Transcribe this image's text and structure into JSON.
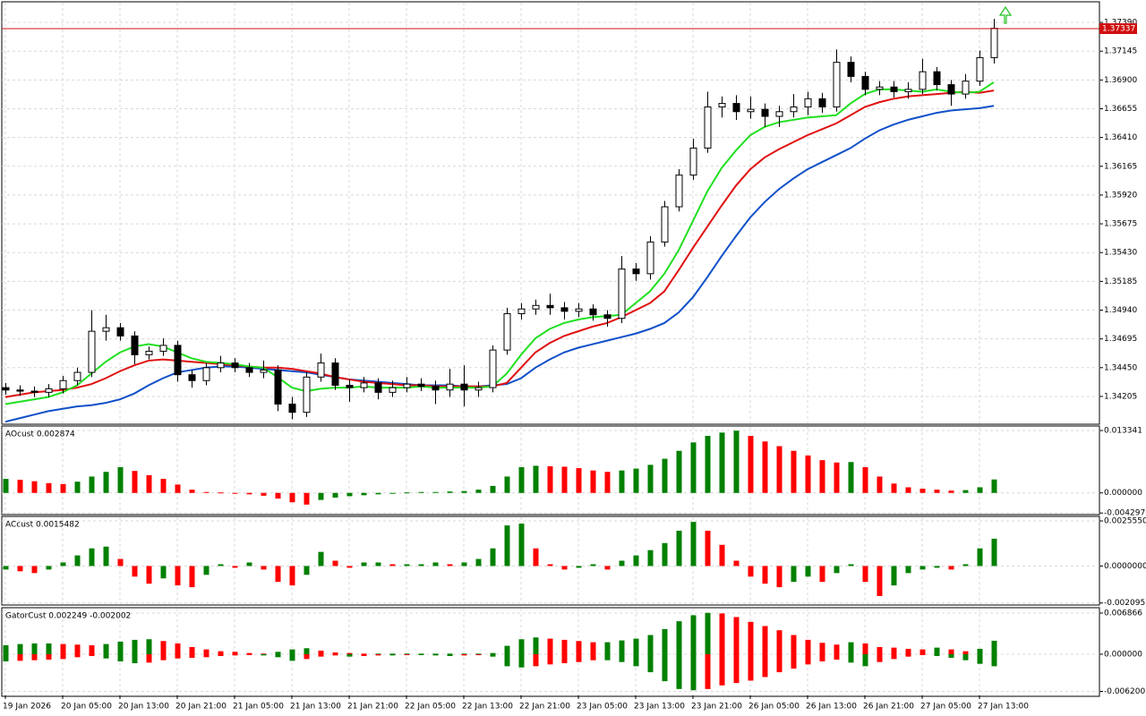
{
  "chart_data": [
    {
      "type": "candlestick",
      "categories": [
        "19 Jan 2026",
        null,
        null,
        null,
        "20 Jan 05:00",
        null,
        null,
        null,
        "20 Jan 13:00",
        null,
        null,
        null,
        "20 Jan 21:00",
        null,
        null,
        null,
        "21 Jan 05:00",
        null,
        null,
        null,
        "21 Jan 13:00",
        null,
        null,
        null,
        "21 Jan 21:00",
        null,
        null,
        null,
        "22 Jan 05:00",
        null,
        null,
        null,
        "22 Jan 13:00",
        null,
        null,
        null,
        "22 Jan 21:00",
        null,
        null,
        null,
        "23 Jan 05:00",
        null,
        null,
        null,
        "23 Jan 13:00",
        null,
        null,
        null,
        "23 Jan 21:00",
        null,
        null,
        null,
        "26 Jan 05:00",
        null,
        null,
        null,
        "26 Jan 13:00",
        null,
        null,
        null,
        "26 Jan 21:00",
        null,
        null,
        null,
        "27 Jan 05:00",
        null,
        null,
        null,
        "27 Jan 13:00",
        null
      ],
      "open": [
        1.3428,
        1.3426,
        1.3425,
        1.3424,
        1.3427,
        1.3434,
        1.3441,
        1.3476,
        1.3479,
        1.3472,
        1.3456,
        1.3459,
        1.3464,
        1.3439,
        1.3434,
        1.3445,
        1.3449,
        1.3445,
        1.3441,
        1.3443,
        1.3414,
        1.3407,
        1.3437,
        1.3449,
        1.343,
        1.3428,
        1.3432,
        1.3424,
        1.3428,
        1.3431,
        1.3429,
        1.3426,
        1.3431,
        1.3426,
        1.3428,
        1.346,
        1.3491,
        1.3495,
        1.3498,
        1.3496,
        1.3493,
        1.3495,
        1.349,
        1.3487,
        1.3529,
        1.3525,
        1.3552,
        1.3582,
        1.3609,
        1.3632,
        1.3667,
        1.367,
        1.3663,
        1.3665,
        1.3659,
        1.3663,
        1.3667,
        1.3674,
        1.3667,
        1.3705,
        1.3693,
        1.3682,
        1.3684,
        1.368,
        1.3682,
        1.3697,
        1.3686,
        1.3678,
        1.3689,
        1.3709
      ],
      "high": [
        1.3432,
        1.343,
        1.3429,
        1.3431,
        1.3438,
        1.3445,
        1.3494,
        1.349,
        1.3483,
        1.3476,
        1.3463,
        1.347,
        1.3468,
        1.3443,
        1.3449,
        1.3455,
        1.3453,
        1.3449,
        1.3451,
        1.3447,
        1.342,
        1.3441,
        1.3457,
        1.3453,
        1.3435,
        1.3437,
        1.3436,
        1.3434,
        1.3437,
        1.3436,
        1.3434,
        1.3444,
        1.3447,
        1.3433,
        1.3464,
        1.3496,
        1.35,
        1.3503,
        1.3508,
        1.3501,
        1.35,
        1.3499,
        1.3494,
        1.354,
        1.3534,
        1.3557,
        1.3587,
        1.3614,
        1.364,
        1.368,
        1.3676,
        1.3677,
        1.3676,
        1.367,
        1.3668,
        1.3678,
        1.368,
        1.3679,
        1.3716,
        1.371,
        1.3697,
        1.3689,
        1.3689,
        1.3688,
        1.3708,
        1.3701,
        1.369,
        1.3695,
        1.3715,
        1.3742
      ],
      "low": [
        1.3422,
        1.3421,
        1.342,
        1.342,
        1.3423,
        1.343,
        1.3437,
        1.3468,
        1.3468,
        1.3448,
        1.3452,
        1.3455,
        1.3433,
        1.3428,
        1.343,
        1.3441,
        1.3441,
        1.3437,
        1.3436,
        1.3408,
        1.3401,
        1.3403,
        1.3433,
        1.3426,
        1.3416,
        1.3424,
        1.3418,
        1.342,
        1.3424,
        1.3425,
        1.3414,
        1.342,
        1.3412,
        1.342,
        1.3424,
        1.3456,
        1.3486,
        1.349,
        1.349,
        1.3486,
        1.3488,
        1.3485,
        1.348,
        1.3483,
        1.3519,
        1.352,
        1.3548,
        1.3578,
        1.3605,
        1.3628,
        1.3658,
        1.3656,
        1.3657,
        1.365,
        1.365,
        1.3658,
        1.366,
        1.3662,
        1.3663,
        1.3688,
        1.3677,
        1.3677,
        1.3675,
        1.3674,
        1.3678,
        1.3681,
        1.3668,
        1.3674,
        1.3685,
        1.3704
      ],
      "close": [
        1.3426,
        1.3425,
        1.3424,
        1.3427,
        1.3434,
        1.3441,
        1.3476,
        1.3479,
        1.3472,
        1.3456,
        1.3459,
        1.3464,
        1.3439,
        1.3434,
        1.3445,
        1.3449,
        1.3445,
        1.3441,
        1.3443,
        1.3414,
        1.3407,
        1.3437,
        1.3449,
        1.343,
        1.3428,
        1.3432,
        1.3424,
        1.3428,
        1.3431,
        1.3429,
        1.3426,
        1.3431,
        1.3426,
        1.3428,
        1.346,
        1.3491,
        1.3495,
        1.3498,
        1.3496,
        1.3493,
        1.3495,
        1.349,
        1.3487,
        1.3529,
        1.3525,
        1.3552,
        1.3582,
        1.3609,
        1.3632,
        1.3667,
        1.367,
        1.3663,
        1.3665,
        1.3659,
        1.3663,
        1.3667,
        1.3674,
        1.3667,
        1.3705,
        1.3693,
        1.3682,
        1.3684,
        1.368,
        1.3682,
        1.3697,
        1.3686,
        1.3678,
        1.3689,
        1.3709,
        1.3734
      ],
      "up_color": "#ffffff",
      "down_color": "#000000",
      "lines": [
        {
          "color": "#1050c8",
          "values": [
            1.3399,
            1.3402,
            1.3405,
            1.3408,
            1.341,
            1.3412,
            1.3413,
            1.3415,
            1.3418,
            1.3423,
            1.343,
            1.3436,
            1.3441,
            1.3443,
            1.3445,
            1.3446,
            1.3446,
            1.3445,
            1.3444,
            1.3443,
            1.3442,
            1.3441,
            1.3439,
            1.3437,
            1.3435,
            1.3434,
            1.3433,
            1.3432,
            1.3431,
            1.343,
            1.343,
            1.343,
            1.3429,
            1.3429,
            1.343,
            1.3431,
            1.3436,
            1.3445,
            1.3452,
            1.3458,
            1.3462,
            1.3465,
            1.3468,
            1.3471,
            1.3474,
            1.3478,
            1.3483,
            1.3492,
            1.3505,
            1.3522,
            1.354,
            1.3557,
            1.3573,
            1.3586,
            1.3597,
            1.3606,
            1.3614,
            1.362,
            1.3626,
            1.3632,
            1.364,
            1.3647,
            1.3652,
            1.3656,
            1.3659,
            1.3662,
            1.3664,
            1.3665,
            1.3666,
            1.3668
          ]
        },
        {
          "color": "#e01010",
          "values": [
            1.342,
            1.3422,
            1.3424,
            1.3425,
            1.3426,
            1.3428,
            1.3431,
            1.3436,
            1.3442,
            1.3447,
            1.3451,
            1.3452,
            1.3451,
            1.345,
            1.3449,
            1.3448,
            1.3447,
            1.3446,
            1.3445,
            1.3445,
            1.3444,
            1.3442,
            1.344,
            1.3437,
            1.3435,
            1.3433,
            1.3432,
            1.3431,
            1.343,
            1.343,
            1.3429,
            1.3429,
            1.3429,
            1.3429,
            1.3429,
            1.3432,
            1.3445,
            1.3458,
            1.3466,
            1.3472,
            1.3476,
            1.348,
            1.3483,
            1.3488,
            1.3494,
            1.35,
            1.351,
            1.3528,
            1.3547,
            1.3565,
            1.3583,
            1.36,
            1.3614,
            1.3624,
            1.3631,
            1.3637,
            1.3643,
            1.3648,
            1.3653,
            1.366,
            1.3667,
            1.3671,
            1.3674,
            1.3676,
            1.3677,
            1.3678,
            1.3679,
            1.368,
            1.3679,
            1.3681
          ]
        },
        {
          "color": "#20e020",
          "values": [
            1.3414,
            1.3416,
            1.3418,
            1.342,
            1.3424,
            1.343,
            1.344,
            1.345,
            1.3458,
            1.3463,
            1.3465,
            1.3463,
            1.3458,
            1.3453,
            1.345,
            1.3449,
            1.3448,
            1.3446,
            1.3445,
            1.3437,
            1.3428,
            1.3425,
            1.3427,
            1.3428,
            1.3428,
            1.3429,
            1.3428,
            1.3428,
            1.3428,
            1.3429,
            1.3428,
            1.3428,
            1.3428,
            1.3428,
            1.3429,
            1.344,
            1.3456,
            1.347,
            1.3478,
            1.3483,
            1.3486,
            1.3488,
            1.3489,
            1.349,
            1.35,
            1.351,
            1.3525,
            1.3545,
            1.357,
            1.3595,
            1.3615,
            1.363,
            1.3643,
            1.365,
            1.3654,
            1.3656,
            1.3658,
            1.3659,
            1.366,
            1.367,
            1.3678,
            1.3682,
            1.3682,
            1.3681,
            1.368,
            1.3682,
            1.368,
            1.3679,
            1.368,
            1.3688
          ]
        }
      ],
      "current_price": 1.37337,
      "current_price_color": "#d01010",
      "ylim": [
        1.33976,
        1.37558
      ],
      "yticks": [
        {
          "value": 1.3739,
          "label": "1.37390"
        },
        {
          "value": 1.37145,
          "label": "1.37145"
        },
        {
          "value": 1.369,
          "label": "1.36900"
        },
        {
          "value": 1.36655,
          "label": "1.36655"
        },
        {
          "value": 1.3641,
          "label": "1.36410"
        },
        {
          "value": 1.36165,
          "label": "1.36165"
        },
        {
          "value": 1.3592,
          "label": "1.35920"
        },
        {
          "value": 1.35675,
          "label": "1.35675"
        },
        {
          "value": 1.3543,
          "label": "1.35430"
        },
        {
          "value": 1.35185,
          "label": "1.35185"
        },
        {
          "value": 1.3494,
          "label": "1.34940"
        },
        {
          "value": 1.34695,
          "label": "1.34695"
        },
        {
          "value": 1.3445,
          "label": "1.34450"
        },
        {
          "value": 1.34205,
          "label": "1.34205"
        }
      ],
      "grid": true
    },
    {
      "type": "bar",
      "title": "AOcust 0.002874",
      "values": [
        0.003,
        0.0028,
        0.0025,
        0.0021,
        0.0019,
        0.0024,
        0.0035,
        0.0045,
        0.0055,
        0.0047,
        0.0038,
        0.003,
        0.0018,
        0.0007,
        0.0002,
        0.0001,
        -0.0001,
        -0.0003,
        -0.0006,
        -0.0012,
        -0.002,
        -0.0025,
        -0.0015,
        -0.001,
        -0.0007,
        -0.0005,
        -0.0003,
        -0.0001,
        0.0001,
        0.0002,
        0.0002,
        0.0003,
        0.0004,
        0.0007,
        0.0015,
        0.0035,
        0.0055,
        0.0058,
        0.0057,
        0.0056,
        0.0053,
        0.0048,
        0.0045,
        0.0048,
        0.0052,
        0.006,
        0.0073,
        0.009,
        0.0108,
        0.0122,
        0.0129,
        0.0133,
        0.0122,
        0.011,
        0.01,
        0.009,
        0.008,
        0.007,
        0.0065,
        0.0066,
        0.0055,
        0.0035,
        0.002,
        0.0012,
        0.0009,
        0.0007,
        0.0005,
        0.0006,
        0.0012,
        0.002874
      ],
      "up_color": "#008000",
      "down_color": "#ff0000",
      "ylim": [
        -0.00445,
        0.01411
      ],
      "yticks": [
        0.013341,
        {
          "value": 0,
          "label": "0.000000"
        },
        -0.004297
      ],
      "grid": true
    },
    {
      "type": "bar",
      "title": "ACcust 0.0015482",
      "values": [
        -0.0002,
        -0.0003,
        -0.0004,
        -0.0002,
        0.0002,
        0.0006,
        0.001,
        0.0011,
        0.0004,
        -0.0006,
        -0.001,
        -0.0007,
        -0.0011,
        -0.0012,
        -0.0005,
        0.0001,
        -0.0001,
        0.0002,
        -0.0002,
        -0.0009,
        -0.0011,
        -0.0005,
        0.0008,
        0.0003,
        -0.0001,
        0.0002,
        0.0002,
        0.0001,
        0.0001,
        0.0001,
        0.0002,
        0.0001,
        0.0002,
        0.0004,
        0.001,
        0.0023,
        0.0024,
        0.001,
        0.0001,
        -0.0002,
        -0.0001,
        0.0001,
        -0.0002,
        0.0003,
        0.0006,
        0.0009,
        0.0013,
        0.002,
        0.0025,
        0.002,
        0.0012,
        0.0003,
        -0.0006,
        -0.001,
        -0.0012,
        -0.0009,
        -0.0006,
        -0.0009,
        -0.0004,
        0.0001,
        -0.0009,
        -0.0017,
        -0.0011,
        -0.0004,
        -0.0002,
        -0.0001,
        -0.0002,
        0.0001,
        0.001,
        0.0015482
      ],
      "up_color": "#008000",
      "down_color": "#ff0000",
      "ylim": [
        -0.00216,
        0.00276
      ],
      "yticks": [
        {
          "value": 0.002555,
          "label": "0.0025550"
        },
        {
          "value": 0,
          "label": "0.0000000"
        },
        -0.0020951
      ],
      "grid": true
    },
    {
      "type": "gator",
      "title": "GatorCust 0.002249 -0.002002",
      "series": [
        {
          "values": [
            0.0015,
            0.0017,
            0.0018,
            0.0018,
            0.0017,
            0.0016,
            0.0015,
            0.0017,
            0.0021,
            0.0024,
            0.0025,
            0.0022,
            0.0018,
            0.0012,
            0.0008,
            0.0005,
            0.0004,
            0.0002,
            0.0001,
            0.0004,
            0.0008,
            0.001,
            0.0006,
            0.0003,
            0.0002,
            0.0001,
            0.0001,
            0.0001,
            0.0001,
            0.0001,
            0.0001,
            0.0001,
            0.0001,
            0.0001,
            0.0002,
            0.0014,
            0.0025,
            0.0028,
            0.0026,
            0.0024,
            0.0022,
            0.002,
            0.002,
            0.0023,
            0.0026,
            0.0032,
            0.0042,
            0.0055,
            0.0065,
            0.0069,
            0.0068,
            0.0062,
            0.0054,
            0.0047,
            0.004,
            0.0032,
            0.0024,
            0.0019,
            0.0016,
            0.002,
            0.0018,
            0.0012,
            0.0011,
            0.0009,
            0.0008,
            0.0011,
            0.0008,
            0.0005,
            0.0009,
            0.002249
          ]
        },
        {
          "values": [
            -0.0012,
            -0.0011,
            -0.001,
            -0.0009,
            -0.0008,
            -0.0005,
            -0.0003,
            -0.0007,
            -0.0012,
            -0.0015,
            -0.0014,
            -0.001,
            -0.0007,
            -0.0006,
            -0.0005,
            -0.0003,
            -0.0002,
            -0.0001,
            -0.0002,
            -0.0005,
            -0.0011,
            -0.0008,
            -0.0004,
            -0.0002,
            -0.0004,
            -0.0003,
            -0.0002,
            -0.0002,
            -0.0001,
            -0.0001,
            -0.0002,
            -0.0003,
            -0.0002,
            -0.0001,
            -0.0004,
            -0.002,
            -0.0022,
            -0.002,
            -0.0017,
            -0.0015,
            -0.0013,
            -0.001,
            -0.001,
            -0.0013,
            -0.002,
            -0.003,
            -0.0045,
            -0.0058,
            -0.006,
            -0.0058,
            -0.0052,
            -0.0048,
            -0.0044,
            -0.0038,
            -0.003,
            -0.0024,
            -0.0017,
            -0.0012,
            -0.0009,
            -0.0014,
            -0.002,
            -0.0013,
            -0.0008,
            -0.0004,
            -0.0001,
            -0.0003,
            -0.0006,
            -0.001,
            -0.0016,
            -0.002002
          ]
        }
      ],
      "up_color": "#008000",
      "down_color": "#ff0000",
      "ylim": [
        -0.00687,
        0.00761
      ],
      "yticks": [
        0.006866,
        {
          "value": 0,
          "label": "0.000000"
        },
        {
          "value": -0.0062,
          "label": "-0.006200"
        }
      ],
      "grid": true
    }
  ]
}
